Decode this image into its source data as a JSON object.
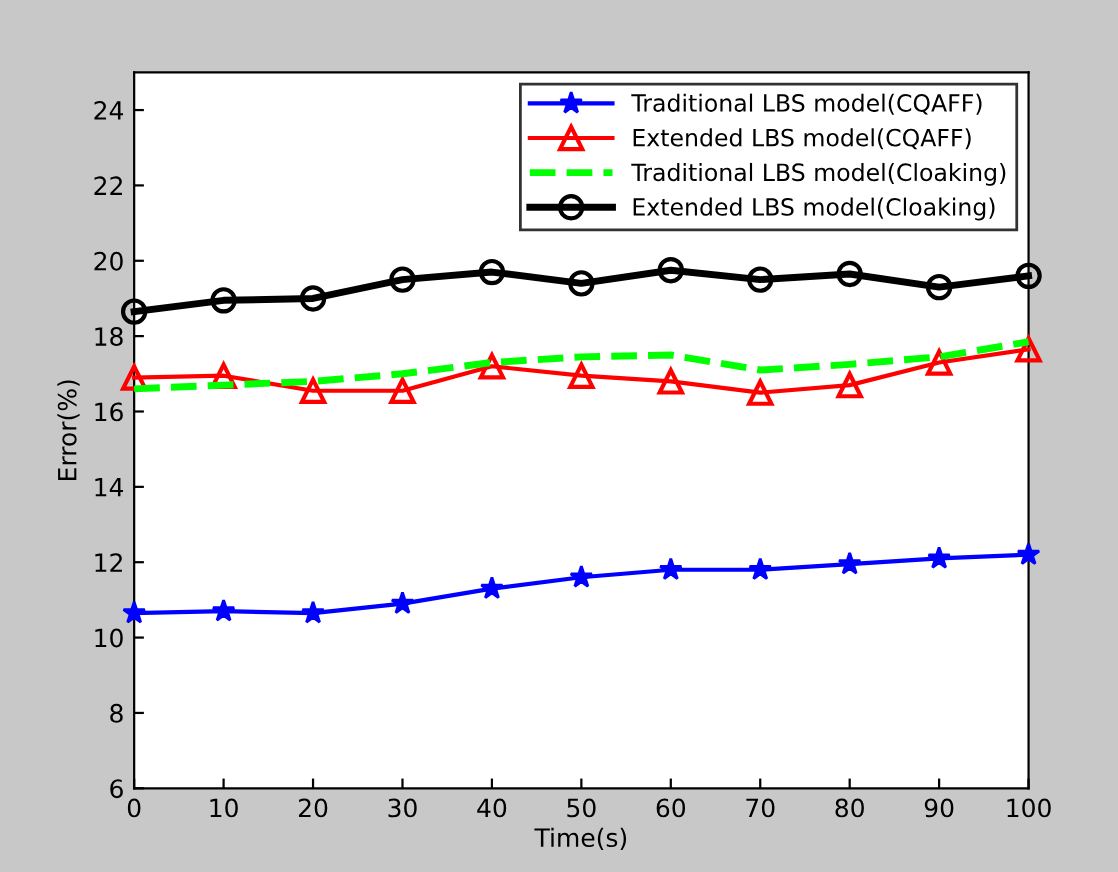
{
  "chart_data": {
    "type": "line",
    "xlabel": "Time(s)",
    "ylabel": "Error(%)",
    "x": [
      0,
      10,
      20,
      30,
      40,
      50,
      60,
      70,
      80,
      90,
      100
    ],
    "series": [
      {
        "name": "Traditional LBS model(CQAFF)",
        "color": "#0000ff",
        "marker": "star",
        "line_style": "solid",
        "values": [
          10.65,
          10.7,
          10.65,
          10.9,
          11.3,
          11.6,
          11.8,
          11.8,
          11.95,
          12.1,
          12.2
        ]
      },
      {
        "name": "Extended LBS model(CQAFF)",
        "color": "#ff0000",
        "marker": "triangle",
        "line_style": "solid",
        "values": [
          16.9,
          16.95,
          16.55,
          16.55,
          17.2,
          16.95,
          16.8,
          16.5,
          16.7,
          17.3,
          17.65
        ]
      },
      {
        "name": "Traditional LBS model(Cloaking)",
        "color": "#00ff00",
        "marker": "none",
        "line_style": "dashed",
        "values": [
          16.6,
          16.7,
          16.8,
          17.0,
          17.3,
          17.45,
          17.5,
          17.1,
          17.25,
          17.45,
          17.85
        ]
      },
      {
        "name": "Extended LBS model(Cloaking)",
        "color": "#000000",
        "marker": "circle",
        "line_style": "solid",
        "values": [
          18.65,
          18.95,
          19.0,
          19.5,
          19.7,
          19.4,
          19.75,
          19.5,
          19.65,
          19.3,
          19.6
        ]
      }
    ],
    "xlim": [
      0,
      100
    ],
    "xticks": [
      0,
      10,
      20,
      30,
      40,
      50,
      60,
      70,
      80,
      90,
      100
    ],
    "ylim": [
      6,
      25
    ],
    "yticks": [
      6,
      8,
      10,
      12,
      14,
      16,
      18,
      20,
      22,
      24
    ],
    "grid": false,
    "legend": "top right"
  }
}
